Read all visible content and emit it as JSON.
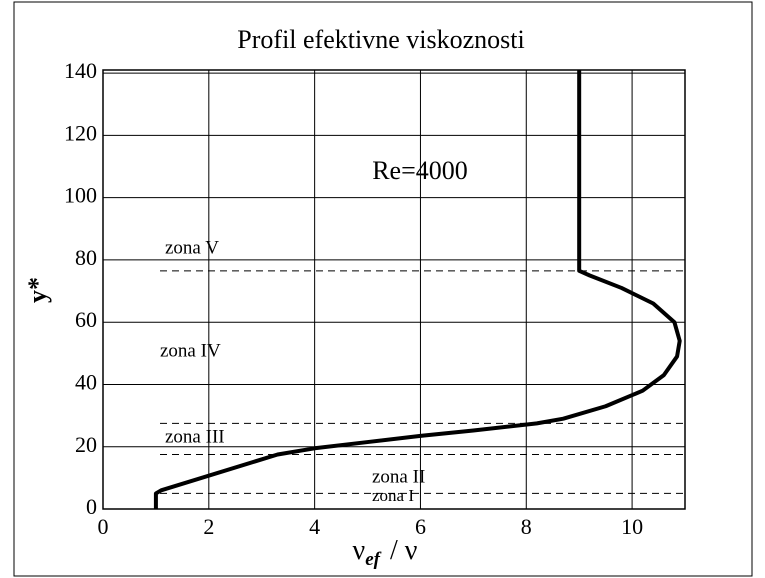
{
  "chart_data": {
    "type": "line",
    "title": "Profil efektivne viskoznosti",
    "x_label": "ν",
    "x_label_sub": "ef",
    "x_label_tail": "/ ν",
    "y_label": "y*",
    "x": [
      1,
      1,
      1.1,
      3.3,
      4,
      5,
      6,
      7,
      8.2,
      8.7,
      9.5,
      10.2,
      10.6,
      10.85,
      10.9,
      10.8,
      10.4,
      9.8,
      9.2,
      9,
      9
    ],
    "series": [
      {
        "name": "Re=4000",
        "color": "#000000",
        "values": [
          0,
          5,
          6,
          17.5,
          19.5,
          21.5,
          23.5,
          25.2,
          27.5,
          29,
          33,
          38,
          43,
          49,
          54,
          60,
          66,
          71,
          75,
          76.5,
          141
        ]
      }
    ],
    "reference_lines": [
      5,
      17.5,
      27.5,
      76.5
    ],
    "annotations": [
      "zona V",
      "zona IV",
      "zona III",
      "zona II",
      "zona I"
    ],
    "xlim": [
      0,
      11
    ],
    "ylim": [
      0,
      141
    ],
    "xticks": [
      0,
      2,
      4,
      6,
      8,
      10
    ],
    "yticks": [
      0,
      20,
      40,
      60,
      80,
      100,
      120,
      140
    ],
    "grid": true
  }
}
